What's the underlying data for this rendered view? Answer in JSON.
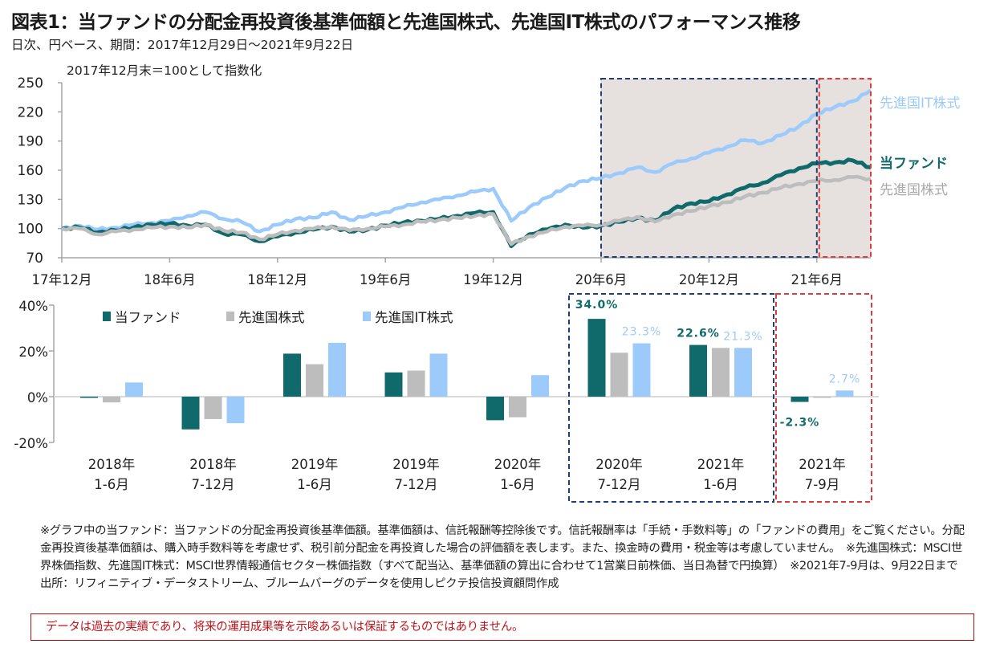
{
  "title": "図表1：当ファンドの分配金再投資後基準価額と先進国株式、先進国IT株式のパフォーマンス推移",
  "subtitle": "日次、円ベース、期間：2017年12月29日～2021年9月22日",
  "colors": {
    "fund": "#106a6b",
    "world": "#bdbdbd",
    "it": "#9ccbfb",
    "shade": "#e6e0de",
    "blue_box": "#1f3f7a",
    "red_box": "#e03a3a"
  },
  "chart_data": [
    {
      "type": "line",
      "title": "2017年12月末＝100として指数化",
      "xlabel": "",
      "ylabel": "",
      "ylim": [
        70,
        250
      ],
      "yticks": [
        "250",
        "220",
        "190",
        "160",
        "130",
        "100",
        "70"
      ],
      "xticks": [
        "17年12月",
        "18年6月",
        "18年12月",
        "19年6月",
        "19年12月",
        "20年6月",
        "20年12月",
        "21年6月"
      ],
      "x_index_range": [
        0,
        45
      ],
      "highlight_periods": [
        {
          "name": "2020年7月〜2021年6月",
          "from": 30,
          "to": 42,
          "style": "blue-dashed"
        },
        {
          "name": "2021年7月〜9月",
          "from": 42,
          "to": 45,
          "style": "red-dashed"
        }
      ],
      "x_note": "x = months since 2017-12 (0=17年12月 … 45≈21年9月22日)",
      "series": [
        {
          "name": "先進国IT株式",
          "label": "先進国IT株式",
          "color": "#9ccbfb",
          "x": [
            0,
            1,
            2,
            3,
            4,
            5,
            6,
            7,
            8,
            9,
            10,
            11,
            12,
            13,
            14,
            15,
            16,
            17,
            18,
            19,
            20,
            21,
            22,
            23,
            24,
            25,
            26,
            27,
            28,
            29,
            30,
            31,
            32,
            33,
            34,
            35,
            36,
            37,
            38,
            39,
            40,
            41,
            42,
            43,
            44,
            45
          ],
          "values": [
            100,
            103,
            99,
            101,
            104,
            106,
            108,
            113,
            117,
            110,
            107,
            97,
            104,
            110,
            111,
            117,
            109,
            113,
            117,
            122,
            127,
            130,
            134,
            138,
            141,
            108,
            122,
            132,
            142,
            149,
            152,
            157,
            163,
            158,
            167,
            172,
            178,
            184,
            191,
            188,
            196,
            205,
            218,
            225,
            231,
            242
          ]
        },
        {
          "name": "当ファンド",
          "label": "当ファンド",
          "color": "#106a6b",
          "x": [
            0,
            1,
            2,
            3,
            4,
            5,
            6,
            7,
            8,
            9,
            10,
            11,
            12,
            13,
            14,
            15,
            16,
            17,
            18,
            19,
            20,
            21,
            22,
            23,
            24,
            25,
            26,
            27,
            28,
            29,
            30,
            31,
            32,
            33,
            34,
            35,
            36,
            37,
            38,
            39,
            40,
            41,
            42,
            43,
            44,
            45
          ],
          "values": [
            100,
            101,
            96,
            98,
            101,
            104,
            105,
            103,
            104,
            95,
            94,
            87,
            92,
            96,
            99,
            102,
            97,
            99,
            103,
            106,
            108,
            110,
            113,
            116,
            117,
            82,
            94,
            99,
            104,
            101,
            103,
            107,
            111,
            108,
            120,
            126,
            128,
            135,
            142,
            147,
            155,
            162,
            167,
            168,
            170,
            163
          ]
        },
        {
          "name": "先進国株式",
          "label": "先進国株式",
          "color": "#bdbdbd",
          "x": [
            0,
            1,
            2,
            3,
            4,
            5,
            6,
            7,
            8,
            9,
            10,
            11,
            12,
            13,
            14,
            15,
            16,
            17,
            18,
            19,
            20,
            21,
            22,
            23,
            24,
            25,
            26,
            27,
            28,
            29,
            30,
            31,
            32,
            33,
            34,
            35,
            36,
            37,
            38,
            39,
            40,
            41,
            42,
            43,
            44,
            45
          ],
          "values": [
            100,
            100,
            94,
            97,
            99,
            101,
            102,
            101,
            104,
            98,
            96,
            89,
            94,
            98,
            100,
            102,
            98,
            100,
            102,
            104,
            107,
            109,
            111,
            113,
            115,
            84,
            92,
            97,
            102,
            103,
            104,
            108,
            112,
            107,
            114,
            118,
            123,
            127,
            133,
            137,
            142,
            146,
            149,
            150,
            153,
            151
          ]
        }
      ]
    },
    {
      "type": "bar",
      "title": "",
      "xlabel": "",
      "ylabel": "",
      "ylim": [
        -20,
        40
      ],
      "yticks": [
        "40%",
        "20%",
        "0%",
        "-20%"
      ],
      "categories": [
        [
          "2018年",
          "1-6月"
        ],
        [
          "2018年",
          "7-12月"
        ],
        [
          "2019年",
          "1-6月"
        ],
        [
          "2019年",
          "7-12月"
        ],
        [
          "2020年",
          "1-6月"
        ],
        [
          "2020年",
          "7-12月"
        ],
        [
          "2021年",
          "1-6月"
        ],
        [
          "2021年",
          "7-9月"
        ]
      ],
      "legend_position": "top-left",
      "series": [
        {
          "name": "当ファンド",
          "color": "#106a6b",
          "values": [
            -0.5,
            -14.3,
            18.8,
            10.6,
            -10.3,
            34.0,
            22.6,
            -2.3
          ]
        },
        {
          "name": "先進国株式",
          "color": "#bdbdbd",
          "values": [
            -2.5,
            -9.8,
            14.2,
            11.4,
            -9.0,
            19.2,
            21.3,
            -0.5
          ]
        },
        {
          "name": "先進国IT株式",
          "color": "#9ccbfb",
          "values": [
            6.2,
            -11.6,
            23.5,
            18.8,
            9.4,
            23.3,
            21.3,
            2.7
          ]
        }
      ],
      "data_labels": [
        {
          "series": 0,
          "category": 5,
          "text": "34.0%"
        },
        {
          "series": 2,
          "category": 5,
          "text": "23.3%"
        },
        {
          "series": 0,
          "category": 6,
          "text": "22.6%"
        },
        {
          "series": 2,
          "category": 6,
          "text": "21.3%"
        },
        {
          "series": 0,
          "category": 7,
          "text": "-2.3%"
        },
        {
          "series": 2,
          "category": 7,
          "text": "2.7%"
        }
      ]
    }
  ],
  "notes": "※グラフ中の当ファンド：当ファンドの分配金再投資後基準価額。基準価額は、信託報酬等控除後です。信託報酬率は「手続・手数料等」の「ファンドの費用」をご覧ください。分配金再投資後基準価額は、購入時手数料等を考慮せず、税引前分配金を再投資した場合の評価額を表します。また、換金時の費用・税金等は考慮していません。　※先進国株式：MSCI世界株価指数、先進国IT株式：MSCI世界情報通信セクター株価指数（すべて配当込、基準価額の算出に合わせて1営業日前株価、当日為替で円換算）　※2021年7-9月は、9月22日まで　出所：リフィニティブ・データストリーム、ブルームバーグのデータを使用しピクテ投信投資顧問作成",
  "disclaimer": "データは過去の実績であり、将来の運用成果等を示唆あるいは保証するものではありません。"
}
